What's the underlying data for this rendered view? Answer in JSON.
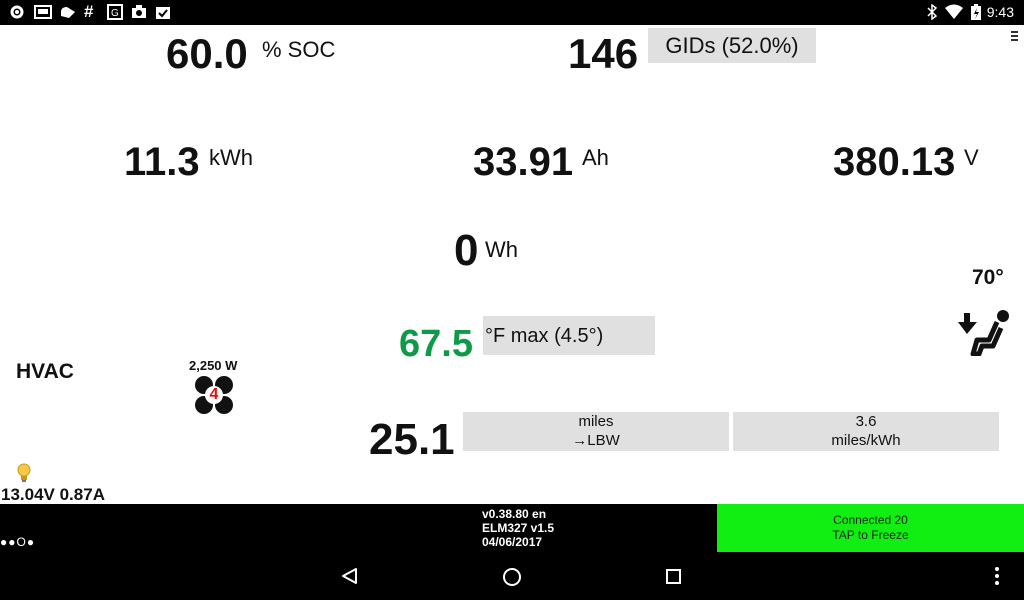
{
  "status_bar": {
    "time": "9:43",
    "left_icons": [
      "settings-icon",
      "image-icon",
      "cloud-icon",
      "hash-icon",
      "app-icon",
      "camera-icon",
      "task-icon"
    ],
    "right_icons": [
      "bluetooth-icon",
      "wifi-icon",
      "battery-charging-icon"
    ]
  },
  "soc": {
    "value": "60.0",
    "unit": "% SOC"
  },
  "gids": {
    "value": "146",
    "label": "GIDs (52.0%)"
  },
  "menu_icon": "menu-icon",
  "kwh": {
    "value": "11.3",
    "unit": "kWh"
  },
  "ah": {
    "value": "33.91",
    "unit": "Ah"
  },
  "voltage": {
    "value": "380.13",
    "unit": "V"
  },
  "wh": {
    "value": "0",
    "unit": "Wh"
  },
  "seat_temp": {
    "value": "70°"
  },
  "temp": {
    "value": "67.5",
    "label": "°F max (4.5°)",
    "color": "#0f9a4a"
  },
  "hvac": {
    "label": "HVAC",
    "power": "2,250 W",
    "fan_level": "4"
  },
  "range": {
    "value": "25.1",
    "box1_line1": "miles",
    "box1_line2": "→LBW",
    "box2_line1": "3.6",
    "box2_line2": "miles/kWh"
  },
  "battery12v": {
    "text": "13.04V 0.87A"
  },
  "bottom": {
    "dots": "●●O●",
    "version_line1": "v0.38.80 en",
    "version_line2": "ELM327 v1.5",
    "version_line3": "04/06/2017",
    "connect_line1": "Connected 20",
    "connect_line2": "TAP to Freeze",
    "connect_color": "#11ee11"
  },
  "nav": {
    "back": "back-icon",
    "home": "home-icon",
    "recents": "recents-icon",
    "more": "more-icon"
  }
}
